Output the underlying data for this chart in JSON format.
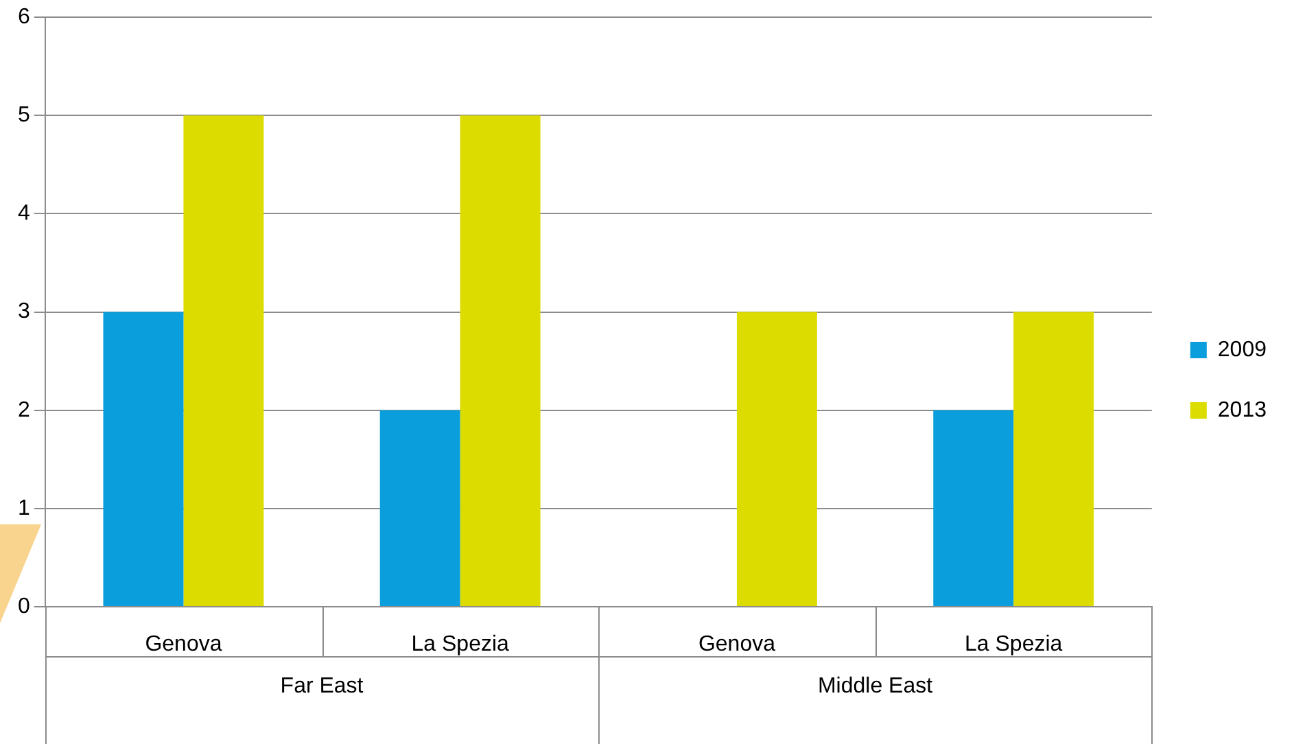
{
  "chart_data": {
    "type": "bar",
    "categories": [
      "Genova",
      "La Spezia",
      "Genova",
      "La Spezia"
    ],
    "series": [
      {
        "name": "2009",
        "color": "#0a9fdc",
        "values": [
          3,
          2,
          null,
          2
        ]
      },
      {
        "name": "2013",
        "color": "#dcdc00",
        "values": [
          5,
          5,
          3,
          3
        ]
      }
    ],
    "annotations": [
      "Far East",
      "Middle East"
    ],
    "ylim": [
      0,
      6
    ],
    "yticks": [
      0,
      1,
      2,
      3,
      4,
      5,
      6
    ],
    "grid": "y",
    "legend": "right"
  }
}
